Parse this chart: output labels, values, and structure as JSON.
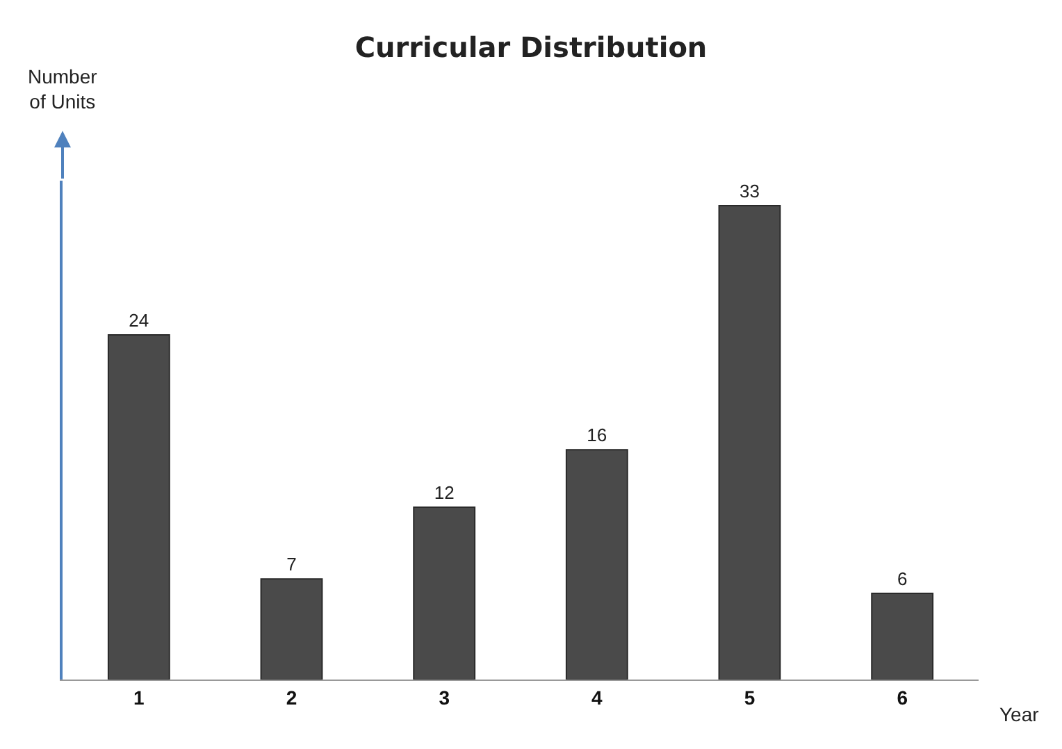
{
  "chart_data": {
    "type": "bar",
    "title": "Curricular Distribution",
    "xlabel": "Year",
    "ylabel": "Number of Units",
    "categories": [
      "1",
      "2",
      "3",
      "4",
      "5",
      "6"
    ],
    "values": [
      24,
      7,
      12,
      16,
      33,
      6
    ],
    "color": "#4a4a4a",
    "data_labels": true,
    "tick_labels": "x"
  }
}
